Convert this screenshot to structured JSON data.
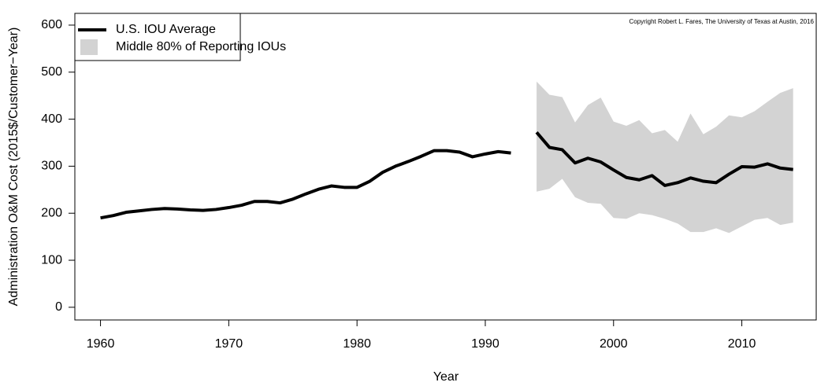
{
  "chart_data": {
    "type": "line",
    "xlabel": "Year",
    "ylabel": "Administration O&M Cost (2015$/Customer−Year)",
    "annotation": "Copyright Robert L. Fares, The University of Texas at Austin, 2016",
    "legend": "top-left",
    "xlim": [
      1958,
      2015.8
    ],
    "ylim": [
      -27,
      625
    ],
    "xticks": [
      1960,
      1970,
      1980,
      1990,
      2000,
      2010
    ],
    "yticks": [
      0,
      100,
      200,
      300,
      400,
      500,
      600
    ],
    "series": [
      {
        "name": "U.S. IOU Average",
        "color": "#000000",
        "x": [
          1960,
          1961,
          1962,
          1963,
          1964,
          1965,
          1966,
          1967,
          1968,
          1969,
          1970,
          1971,
          1972,
          1973,
          1974,
          1975,
          1976,
          1977,
          1978,
          1979,
          1980,
          1981,
          1982,
          1983,
          1984,
          1985,
          1986,
          1987,
          1988,
          1989,
          1990,
          1991,
          1992,
          1993,
          1994,
          1995,
          1996,
          1997,
          1998,
          1999,
          2000,
          2001,
          2002,
          2003,
          2004,
          2005,
          2006,
          2007,
          2008,
          2009,
          2010,
          2011,
          2012,
          2013,
          2014
        ],
        "values": [
          190,
          195,
          202,
          205,
          208,
          210,
          209,
          207,
          206,
          208,
          212,
          217,
          225,
          225,
          222,
          230,
          241,
          251,
          258,
          255,
          255,
          268,
          287,
          300,
          310,
          321,
          333,
          333,
          330,
          320,
          326,
          331,
          328,
          null,
          372,
          340,
          335,
          307,
          317,
          309,
          292,
          276,
          271,
          280,
          259,
          265,
          275,
          268,
          265,
          283,
          299,
          298,
          305,
          296,
          293
        ]
      }
    ],
    "band": {
      "name": "Middle 80% of Reporting IOUs",
      "color": "#d3d3d3",
      "x": [
        1994,
        1995,
        1996,
        1997,
        1998,
        1999,
        2000,
        2001,
        2002,
        2003,
        2004,
        2005,
        2006,
        2007,
        2008,
        2009,
        2010,
        2011,
        2012,
        2013,
        2014
      ],
      "upper": [
        480,
        452,
        447,
        393,
        430,
        446,
        395,
        386,
        398,
        370,
        377,
        352,
        412,
        368,
        384,
        408,
        404,
        417,
        437,
        456,
        466
      ],
      "lower": [
        246,
        252,
        273,
        234,
        222,
        220,
        190,
        188,
        200,
        196,
        188,
        178,
        160,
        160,
        168,
        158,
        172,
        186,
        190,
        175,
        180
      ]
    }
  }
}
